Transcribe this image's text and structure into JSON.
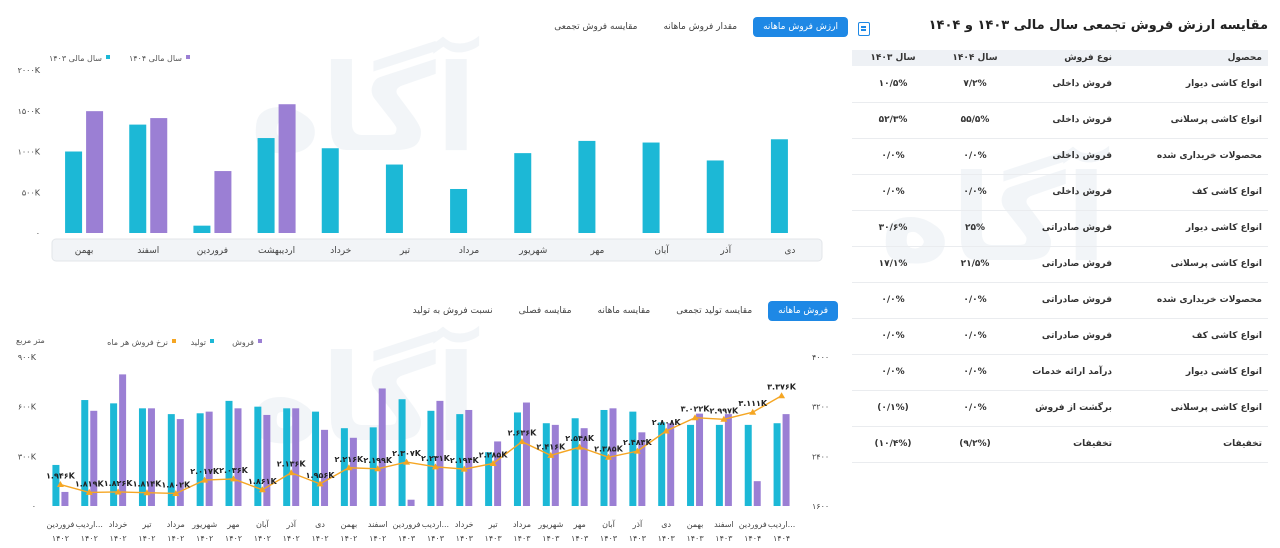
{
  "top_tabs": [
    "ارزش فروش ماهانه",
    "مقدار فروش ماهانه",
    "مقایسه فروش تجمعی"
  ],
  "bottom_tabs": [
    "فروش ماهانه",
    "مقایسه تولید تجمعی",
    "مقایسه ماهانه",
    "مقایسه فصلی",
    "نسبت فروش به تولید"
  ],
  "panel": {
    "title": "مقایسه ارزش فروش تجمعی سال مالی ۱۴۰۳ و ۱۴۰۴",
    "headers": [
      "محصول",
      "نوع فروش",
      "سال ۱۴۰۴",
      "سال ۱۴۰۳"
    ],
    "rows": [
      [
        "انواع کاشی دیوار",
        "فروش داخلی",
        "۷/۲%",
        "۱۰/۵%"
      ],
      [
        "انواع کاشی پرسلانی",
        "فروش داخلی",
        "۵۵/۵%",
        "۵۲/۳%"
      ],
      [
        "محصولات خریداری شده",
        "فروش داخلی",
        "۰/۰%",
        "۰/۰%"
      ],
      [
        "انواع کاشی کف",
        "فروش داخلی",
        "۰/۰%",
        "۰/۰%"
      ],
      [
        "انواع کاشی دیوار",
        "فروش صادراتی",
        "۲۵%",
        "۳۰/۶%"
      ],
      [
        "انواع کاشی پرسلانی",
        "فروش صادراتی",
        "۲۱/۵%",
        "۱۷/۱%"
      ],
      [
        "محصولات خریداری شده",
        "فروش صادراتی",
        "۰/۰%",
        "۰/۰%"
      ],
      [
        "انواع کاشی کف",
        "فروش صادراتی",
        "۰/۰%",
        "۰/۰%"
      ],
      [
        "انواع کاشی دیوار",
        "درآمد ارائه خدمات",
        "۰/۰%",
        "۰/۰%"
      ],
      [
        "انواع کاشی پرسلانی",
        "برگشت از فروش",
        "۰/۰%",
        "(۰/۱%)"
      ],
      [
        "تخفیفات",
        "تخفیفات",
        "(۹/۲%)",
        "(۱۰/۴%)"
      ]
    ]
  },
  "colors": {
    "teal": "#1cb8d6",
    "purple": "#9b7fd4",
    "orange": "#f5a623",
    "accent": "#1e88e5"
  },
  "chart_data": [
    {
      "type": "bar",
      "categories": [
        "بهمن",
        "اسفند",
        "فروردین",
        "اردیبهشت",
        "خرداد",
        "تیر",
        "مرداد",
        "شهریور",
        "مهر",
        "آبان",
        "آذر",
        "دی"
      ],
      "series": [
        {
          "name": "سال مالی ۱۴۰۳",
          "values": [
            1000,
            1330,
            90,
            1165,
            1040,
            840,
            540,
            980,
            1130,
            1110,
            890,
            1150
          ]
        },
        {
          "name": "سال مالی ۱۴۰۴",
          "values": [
            1495,
            1410,
            760,
            1580,
            null,
            null,
            null,
            null,
            null,
            null,
            null,
            null
          ]
        }
      ],
      "yticks": [
        "۰",
        "۵۰۰K",
        "۱۰۰۰K",
        "۱۵۰۰K",
        "۲۰۰۰K"
      ],
      "ylim": [
        0,
        2000
      ],
      "legend": "top-left"
    },
    {
      "type": "bar",
      "ylabel": "متر مربع",
      "categories": [
        "فروردین ۱۴۰۲",
        "اردیبهشت ۱۴۰۲",
        "خرداد ۱۴۰۲",
        "تیر ۱۴۰۲",
        "مرداد ۱۴۰۲",
        "شهریور ۱۴۰۲",
        "مهر ۱۴۰۲",
        "آبان ۱۴۰۲",
        "آذر ۱۴۰۲",
        "دی ۱۴۰۲",
        "بهمن ۱۴۰۲",
        "اسفند ۱۴۰۲",
        "فروردین ۱۴۰۳",
        "اردیبهشت ۱۴۰۳",
        "خرداد ۱۴۰۳",
        "تیر ۱۴۰۳",
        "مرداد ۱۴۰۳",
        "شهریور ۱۴۰۳",
        "مهر ۱۴۰۳",
        "آبان ۱۴۰۳",
        "آذر ۱۴۰۳",
        "دی ۱۴۰۳",
        "بهمن ۱۴۰۳",
        "اسفند ۱۴۰۳",
        "فروردین ۱۴۰۴",
        "اردیبهشت ۱۴۰۴"
      ],
      "x_labels": [
        [
          "فروردین",
          "۱۴۰۲"
        ],
        [
          "اردیب...",
          "۱۴۰۲"
        ],
        [
          "خرداد",
          "۱۴۰۲"
        ],
        [
          "تیر",
          "۱۴۰۲"
        ],
        [
          "مرداد",
          "۱۴۰۲"
        ],
        [
          "شهریور",
          "۱۴۰۲"
        ],
        [
          "مهر",
          "۱۴۰۲"
        ],
        [
          "آبان",
          "۱۴۰۲"
        ],
        [
          "آذر",
          "۱۴۰۲"
        ],
        [
          "دی",
          "۱۴۰۲"
        ],
        [
          "بهمن",
          "۱۴۰۲"
        ],
        [
          "اسفند",
          "۱۴۰۲"
        ],
        [
          "فروردین",
          "۱۴۰۳"
        ],
        [
          "اردیب...",
          "۱۴۰۳"
        ],
        [
          "خرداد",
          "۱۴۰۳"
        ],
        [
          "تیر",
          "۱۴۰۳"
        ],
        [
          "مرداد",
          "۱۴۰۳"
        ],
        [
          "شهریور",
          "۱۴۰۳"
        ],
        [
          "مهر",
          "۱۴۰۳"
        ],
        [
          "آبان",
          "۱۴۰۳"
        ],
        [
          "آذر",
          "۱۴۰۳"
        ],
        [
          "دی",
          "۱۴۰۳"
        ],
        [
          "بهمن",
          "۱۴۰۳"
        ],
        [
          "اسفند",
          "۱۴۰۳"
        ],
        [
          "فروردین",
          "۱۴۰۴"
        ],
        [
          "اردیب...",
          "۱۴۰۴"
        ]
      ],
      "series": [
        {
          "name": "تولید",
          "axis": "left",
          "values": [
            248,
            640,
            620,
            590,
            555,
            560,
            635,
            600,
            590,
            570,
            470,
            475,
            645,
            575,
            555,
            325,
            565,
            500,
            530,
            580,
            570,
            505,
            490,
            490,
            490,
            500
          ]
        },
        {
          "name": "فروش",
          "axis": "left",
          "values": [
            85,
            575,
            795,
            590,
            525,
            570,
            590,
            550,
            590,
            460,
            412,
            710,
            38,
            635,
            580,
            390,
            625,
            490,
            470,
            590,
            445,
            500,
            558,
            555,
            150,
            555
          ]
        },
        {
          "name": "نرخ فروش هر ماه",
          "axis": "right",
          "values": [
            1946,
            1819,
            1826,
            1814,
            1802,
            2017,
            2036,
            1861,
            2136,
            1956,
            2216,
            2199,
            2307,
            2231,
            2194,
            2285,
            2636,
            2416,
            2548,
            2385,
            2483,
            2808,
            3022,
            2997,
            3111,
            3376
          ]
        }
      ],
      "point_labels": [
        "۱.۹۴۶K",
        "۱.۸۱۹K",
        "۱.۸۲۶K",
        "۱.۸۱۴K",
        "۱.۸۰۲K",
        "۲.۰۱۷K",
        "۲.۰۳۶K",
        "۱.۸۶۱K",
        "۲.۱۳۶K",
        "۱.۹۵۶K",
        "۲.۲۱۶K",
        "۲.۱۹۹K",
        "۲.۳۰۷K",
        "۲.۲۳۱K",
        "۲.۱۹۴K",
        "۲.۲۸۵K",
        "۲.۶۳۶K",
        "۲.۴۱۶K",
        "۲.۵۴۸K",
        "۲.۳۸۵K",
        "۲.۴۸۳K",
        "۲.۸۰۸K",
        "۳.۰۲۲K",
        "۲.۹۹۷K",
        "۳.۱۱۱K",
        "۳.۳۷۶K"
      ],
      "yticks_left": [
        "۰",
        "۳۰۰K",
        "۶۰۰K",
        "۹۰۰K"
      ],
      "ylim_left": [
        0,
        900
      ],
      "yticks_right": [
        "۱۶۰۰",
        "۲۴۰۰",
        "۳۲۰۰",
        "۴۰۰۰"
      ],
      "ylim_right": [
        1600,
        4000
      ],
      "legend": "top-left"
    }
  ]
}
